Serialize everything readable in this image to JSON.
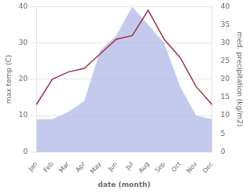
{
  "chart_data": {
    "type": "line",
    "xlabel": "date (month)",
    "ylabel": "max temp (C)",
    "y2label": "med. precipitation (kg/m2)",
    "categories": [
      "Jan",
      "Feb",
      "Mar",
      "Apr",
      "May",
      "Jun",
      "Jul",
      "Aug",
      "Sep",
      "Oct",
      "Nov",
      "Dec"
    ],
    "series": [
      {
        "type": "area",
        "color": "#b0b8e8",
        "axis": "y2",
        "values": [
          9,
          9,
          11,
          14,
          28,
          32,
          40,
          35,
          30,
          18,
          10,
          9
        ]
      },
      {
        "type": "line",
        "color": "#a03040",
        "values": [
          13,
          20,
          22,
          23,
          27,
          31,
          32,
          39,
          31,
          26,
          18,
          13
        ]
      }
    ],
    "ylim": [
      0,
      40
    ],
    "yticks": [
      0,
      10,
      20,
      30,
      40
    ],
    "y2lim": [
      0,
      40
    ],
    "y2ticks": [
      0,
      5,
      10,
      15,
      20,
      25,
      30,
      35,
      40
    ],
    "grid": "y"
  }
}
